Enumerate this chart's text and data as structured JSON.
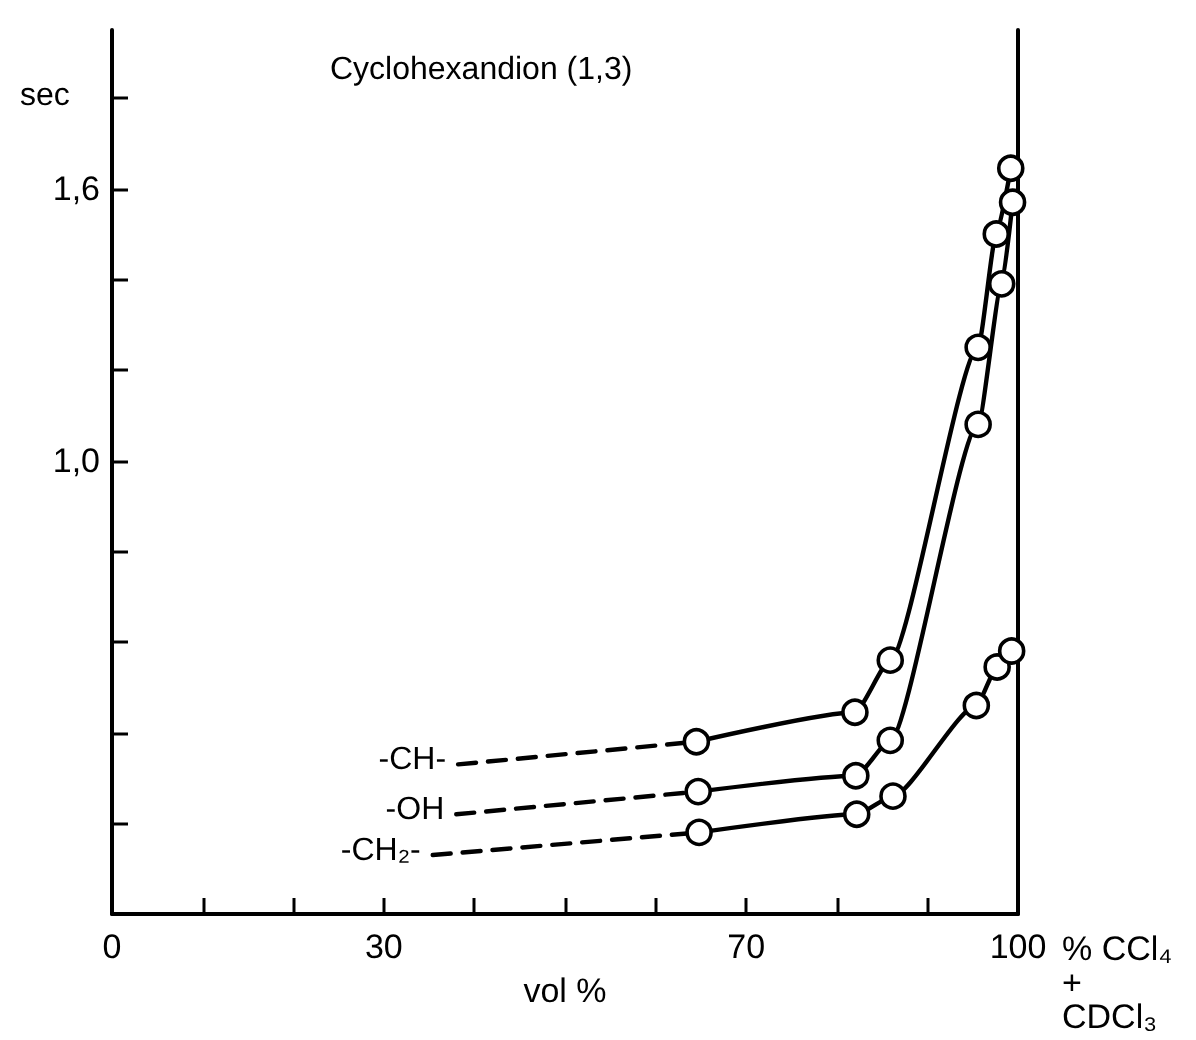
{
  "chart_data": {
    "type": "line",
    "title": "Cyclohexandion (1,3)",
    "xlabel": "vol %",
    "ylabel": "sec",
    "annotations": [
      "% CCl₄",
      "+",
      "CDCl₃"
    ],
    "xlim": [
      0,
      100
    ],
    "xticks": [
      0,
      {
        "value": 10,
        "label": null
      },
      {
        "value": 20,
        "label": null
      },
      30,
      {
        "value": 40,
        "label": null
      },
      {
        "value": 50,
        "label": null
      },
      {
        "value": 60,
        "label": null
      },
      70,
      {
        "value": 80,
        "label": null
      },
      {
        "value": 90,
        "label": null
      },
      100
    ],
    "ylim": [
      0,
      1.95
    ],
    "yticks": [
      {
        "value": 0.2,
        "label": null
      },
      {
        "value": 0.4,
        "label": null
      },
      {
        "value": 0.6,
        "label": null
      },
      {
        "value": 0.8,
        "label": null
      },
      {
        "value": 1.0,
        "label": "1,0"
      },
      {
        "value": 1.2,
        "label": null
      },
      {
        "value": 1.4,
        "label": null
      },
      {
        "value": 1.6,
        "label": "1,6"
      },
      {
        "value": 1.8,
        "label": null
      }
    ],
    "grid": false,
    "series": [
      {
        "name": "-CH-",
        "color": "#000000",
        "line_style": "dashed",
        "x": [
          38.2,
          64.5
        ],
        "values": [
          0.33,
          0.38
        ]
      },
      {
        "color": "#000000",
        "line_style": "solid",
        "marker": "circle",
        "x": [
          64.5,
          82.0,
          85.9,
          95.6,
          97.6,
          99.2
        ],
        "values": [
          0.38,
          0.445,
          0.56,
          1.25,
          1.5,
          1.645
        ]
      },
      {
        "name": "-OH",
        "color": "#000000",
        "line_style": "dashed",
        "x": [
          38.0,
          64.7
        ],
        "values": [
          0.22,
          0.27
        ]
      },
      {
        "color": "#000000",
        "line_style": "solid",
        "marker": "circle",
        "x": [
          64.7,
          82.1,
          85.9,
          95.6,
          98.2,
          99.4
        ],
        "values": [
          0.27,
          0.305,
          0.383,
          1.08,
          1.39,
          1.57
        ]
      },
      {
        "name": "-CH₂-",
        "color": "#000000",
        "line_style": "dashed",
        "x": [
          35.4,
          64.8
        ],
        "values": [
          0.13,
          0.18
        ]
      },
      {
        "color": "#000000",
        "line_style": "solid",
        "marker": "circle",
        "x": [
          64.8,
          82.2,
          86.2,
          95.4,
          97.7,
          99.3
        ],
        "values": [
          0.18,
          0.22,
          0.26,
          0.46,
          0.545,
          0.58
        ]
      }
    ]
  }
}
